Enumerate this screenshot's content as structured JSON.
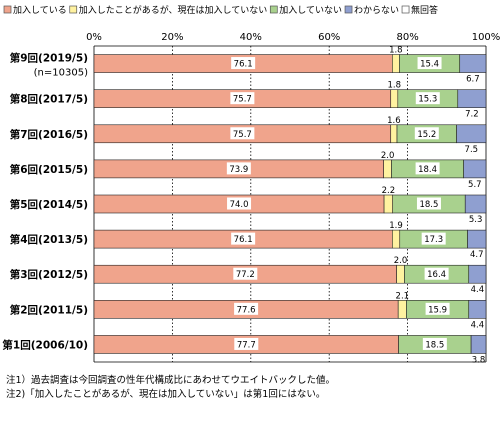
{
  "chart_data": {
    "type": "bar",
    "stacked": true,
    "orientation": "horizontal",
    "percent": true,
    "xlim": [
      0,
      100
    ],
    "ticks": [
      "0%",
      "20%",
      "40%",
      "60%",
      "80%",
      "100%"
    ],
    "tick_values": [
      0,
      20,
      40,
      60,
      80,
      100
    ],
    "grid": true,
    "legend_position": "top",
    "categories": [
      "第9回(2019/5)",
      "第8回(2017/5)",
      "第7回(2016/5)",
      "第6回(2015/5)",
      "第5回(2014/5)",
      "第4回(2013/5)",
      "第3回(2012/5)",
      "第2回(2011/5)",
      "第1回(2006/10)"
    ],
    "category_subs": [
      "(n=10305)",
      "",
      "",
      "",
      "",
      "",
      "",
      "",
      ""
    ],
    "series": [
      {
        "name": "加入している",
        "color": "#f0a48c",
        "values": [
          76.1,
          75.7,
          75.7,
          73.9,
          74.0,
          76.1,
          77.2,
          77.6,
          77.7
        ]
      },
      {
        "name": "加入したことがあるが、現在は加入していない",
        "color": "#fff2a0",
        "values": [
          1.8,
          1.8,
          1.6,
          2.0,
          2.2,
          1.9,
          2.0,
          2.1,
          null
        ]
      },
      {
        "name": "加入していない",
        "color": "#a9d18e",
        "values": [
          15.4,
          15.3,
          15.2,
          18.4,
          18.5,
          17.3,
          16.4,
          15.9,
          18.5
        ]
      },
      {
        "name": "わからない",
        "color": "#8f9fd0",
        "values": [
          6.7,
          7.2,
          7.5,
          5.7,
          5.3,
          4.7,
          4.4,
          4.4,
          3.8
        ]
      },
      {
        "name": "無回答",
        "color": "#ffffff",
        "values": [
          null,
          null,
          null,
          null,
          null,
          null,
          null,
          null,
          null
        ]
      }
    ]
  },
  "notes": [
    "注1）過去調査は今回調査の性年代構成比にあわせてウエイトバックした値。",
    "注2)「加入したことがあるが、現在は加入していない」は第1回にはない。"
  ]
}
